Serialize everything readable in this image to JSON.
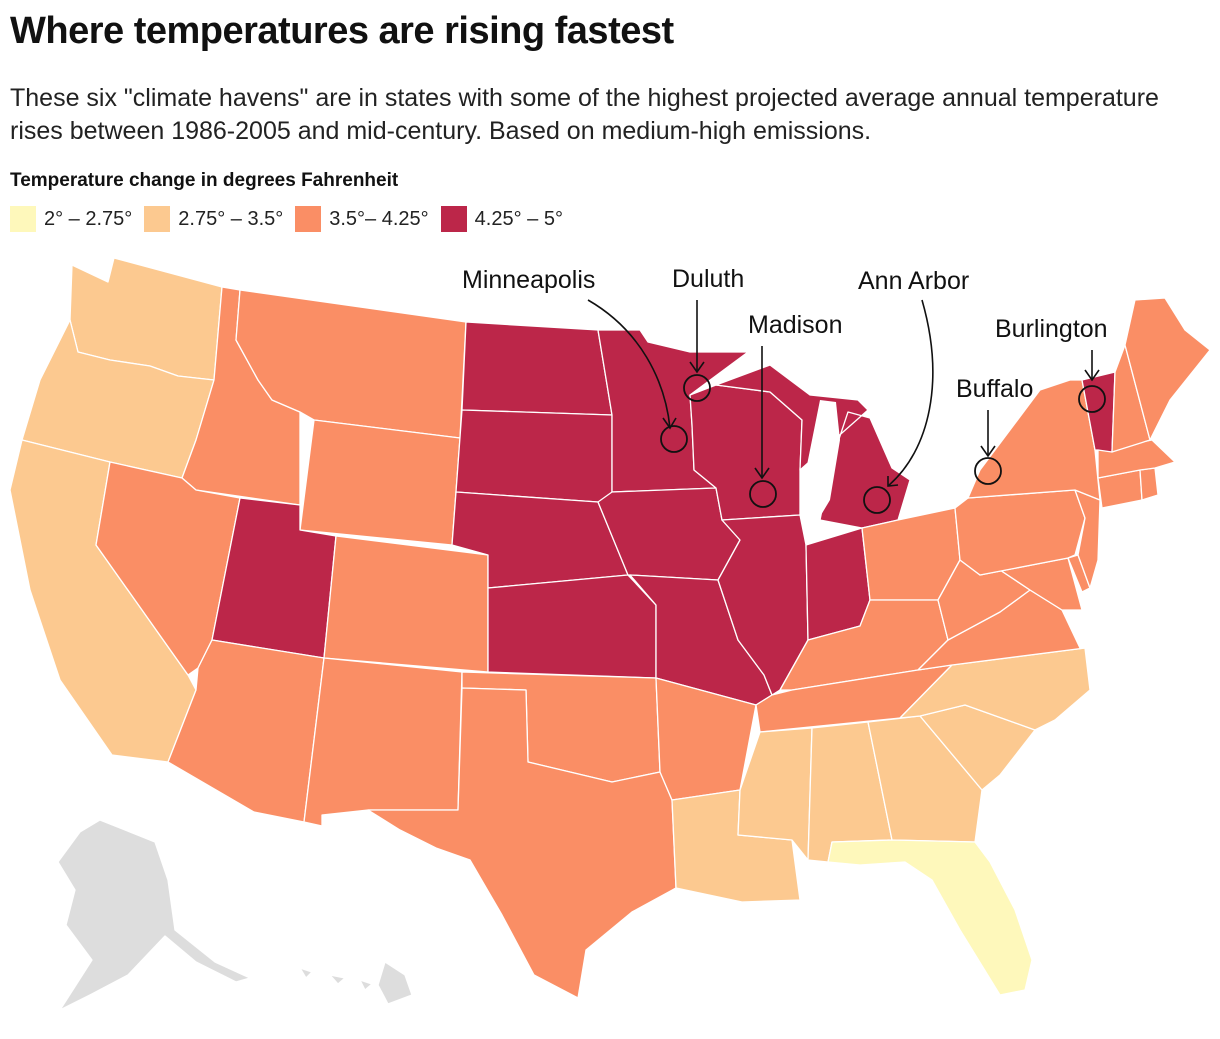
{
  "title": "Where temperatures are rising fastest",
  "subtitle": "These six \"climate havens\" are in states with some of the highest projected average annual temperature rises between 1986-2005 and mid-century. Based on medium-high emissions.",
  "legend": {
    "title": "Temperature change in degrees Fahrenheit",
    "items": [
      {
        "label": "2° – 2.75°",
        "color": "#fef8bb"
      },
      {
        "label": "2.75° – 3.5°",
        "color": "#fcc990"
      },
      {
        "label": "3.5°– 4.25°",
        "color": "#fa8e65"
      },
      {
        "label": "4.25° – 5°",
        "color": "#bc2649"
      }
    ]
  },
  "colors": {
    "bin1": "#fef8bb",
    "bin2": "#fcc990",
    "bin3": "#fa8e65",
    "bin4": "#bc2649",
    "no_data": "#dddddd"
  },
  "cities": [
    {
      "name": "Minneapolis"
    },
    {
      "name": "Duluth"
    },
    {
      "name": "Madison"
    },
    {
      "name": "Ann Arbor"
    },
    {
      "name": "Buffalo"
    },
    {
      "name": "Burlington"
    }
  ],
  "states": {
    "WA": {
      "name": "Washington",
      "bin": "2.75° – 3.5°"
    },
    "OR": {
      "name": "Oregon",
      "bin": "2.75° – 3.5°"
    },
    "CA": {
      "name": "California",
      "bin": "2.75° – 3.5°"
    },
    "ID": {
      "name": "Idaho",
      "bin": "3.5°– 4.25°"
    },
    "NV": {
      "name": "Nevada",
      "bin": "3.5°– 4.25°"
    },
    "MT": {
      "name": "Montana",
      "bin": "3.5°– 4.25°"
    },
    "WY": {
      "name": "Wyoming",
      "bin": "3.5°– 4.25°"
    },
    "UT": {
      "name": "Utah",
      "bin": "4.25° – 5°"
    },
    "AZ": {
      "name": "Arizona",
      "bin": "3.5°– 4.25°"
    },
    "CO": {
      "name": "Colorado",
      "bin": "3.5°– 4.25°"
    },
    "NM": {
      "name": "New Mexico",
      "bin": "3.5°– 4.25°"
    },
    "ND": {
      "name": "North Dakota",
      "bin": "4.25° – 5°"
    },
    "SD": {
      "name": "South Dakota",
      "bin": "4.25° – 5°"
    },
    "NE": {
      "name": "Nebraska",
      "bin": "4.25° – 5°"
    },
    "KS": {
      "name": "Kansas",
      "bin": "4.25° – 5°"
    },
    "OK": {
      "name": "Oklahoma",
      "bin": "3.5°– 4.25°"
    },
    "TX": {
      "name": "Texas",
      "bin": "3.5°– 4.25°"
    },
    "MN": {
      "name": "Minnesota",
      "bin": "4.25° – 5°"
    },
    "IA": {
      "name": "Iowa",
      "bin": "4.25° – 5°"
    },
    "MO": {
      "name": "Missouri",
      "bin": "4.25° – 5°"
    },
    "AR": {
      "name": "Arkansas",
      "bin": "3.5°– 4.25°"
    },
    "LA": {
      "name": "Louisiana",
      "bin": "2.75° – 3.5°"
    },
    "WI": {
      "name": "Wisconsin",
      "bin": "4.25° – 5°"
    },
    "IL": {
      "name": "Illinois",
      "bin": "4.25° – 5°"
    },
    "MI": {
      "name": "Michigan",
      "bin": "4.25° – 5°"
    },
    "IN": {
      "name": "Indiana",
      "bin": "4.25° – 5°"
    },
    "OH": {
      "name": "Ohio",
      "bin": "3.5°– 4.25°"
    },
    "KY": {
      "name": "Kentucky",
      "bin": "3.5°– 4.25°"
    },
    "TN": {
      "name": "Tennessee",
      "bin": "3.5°– 4.25°"
    },
    "MS": {
      "name": "Mississippi",
      "bin": "2.75° – 3.5°"
    },
    "AL": {
      "name": "Alabama",
      "bin": "2.75° – 3.5°"
    },
    "GA": {
      "name": "Georgia",
      "bin": "2.75° – 3.5°"
    },
    "FL": {
      "name": "Florida",
      "bin": "2° – 2.75°"
    },
    "SC": {
      "name": "South Carolina",
      "bin": "2.75° – 3.5°"
    },
    "NC": {
      "name": "North Carolina",
      "bin": "2.75° – 3.5°"
    },
    "VA": {
      "name": "Virginia",
      "bin": "3.5°– 4.25°"
    },
    "WV": {
      "name": "West Virginia",
      "bin": "3.5°– 4.25°"
    },
    "MD": {
      "name": "Maryland",
      "bin": "3.5°– 4.25°"
    },
    "DE": {
      "name": "Delaware",
      "bin": "3.5°– 4.25°"
    },
    "PA": {
      "name": "Pennsylvania",
      "bin": "3.5°– 4.25°"
    },
    "NJ": {
      "name": "New Jersey",
      "bin": "3.5°– 4.25°"
    },
    "NY": {
      "name": "New York",
      "bin": "3.5°– 4.25°"
    },
    "CT": {
      "name": "Connecticut",
      "bin": "3.5°– 4.25°"
    },
    "RI": {
      "name": "Rhode Island",
      "bin": "3.5°– 4.25°"
    },
    "MA": {
      "name": "Massachusetts",
      "bin": "3.5°– 4.25°"
    },
    "VT": {
      "name": "Vermont",
      "bin": "4.25° – 5°"
    },
    "NH": {
      "name": "New Hampshire",
      "bin": "3.5°– 4.25°"
    },
    "ME": {
      "name": "Maine",
      "bin": "3.5°– 4.25°"
    },
    "AK": {
      "name": "Alaska",
      "bin": "no data"
    },
    "HI": {
      "name": "Hawaii",
      "bin": "no data"
    }
  }
}
